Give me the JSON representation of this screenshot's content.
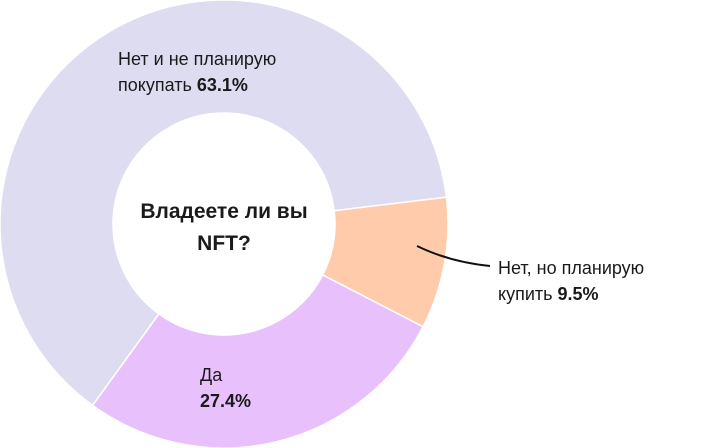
{
  "chart_data": {
    "type": "pie",
    "donut": true,
    "title": "Владеете ли вы NFT?",
    "slices": [
      {
        "label_line1": "Нет, но планирую",
        "label_line2": "купить",
        "value": 9.5,
        "value_text": "9.5%",
        "color": "#ffcbaa"
      },
      {
        "label_line1": "Да",
        "label_line2": "",
        "value": 27.4,
        "value_text": "27.4%",
        "color": "#e8c0fb"
      },
      {
        "label_line1": "Нет и не планирую",
        "label_line2": "покупать",
        "value": 63.1,
        "value_text": "63.1%",
        "color": "#dedcf0"
      }
    ]
  }
}
